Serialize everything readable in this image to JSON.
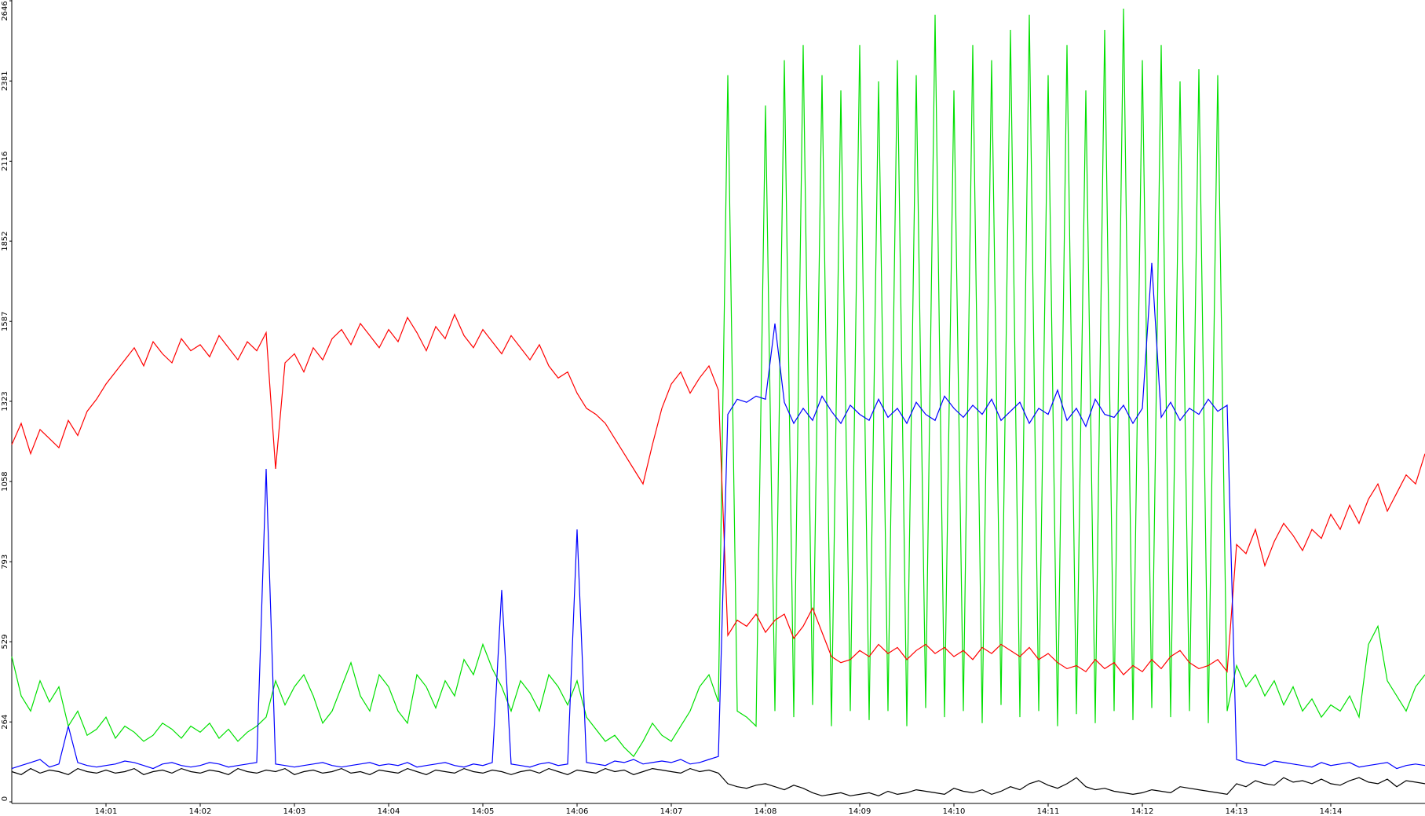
{
  "chart_data": {
    "type": "line",
    "x": [
      0,
      0.1,
      0.2,
      0.3,
      0.4,
      0.5,
      0.6,
      0.7,
      0.8,
      0.9,
      1,
      1.1,
      1.2,
      1.3,
      1.4,
      1.5,
      1.6,
      1.7,
      1.8,
      1.9,
      2,
      2.1,
      2.2,
      2.3,
      2.4,
      2.5,
      2.6,
      2.7,
      2.8,
      2.9,
      3,
      3.1,
      3.2,
      3.3,
      3.4,
      3.5,
      3.6,
      3.7,
      3.8,
      3.9,
      4,
      4.1,
      4.2,
      4.3,
      4.4,
      4.5,
      4.6,
      4.7,
      4.8,
      4.9,
      5,
      5.1,
      5.2,
      5.3,
      5.4,
      5.5,
      5.6,
      5.7,
      5.8,
      5.9,
      6,
      6.1,
      6.2,
      6.3,
      6.4,
      6.5,
      6.6,
      6.7,
      6.8,
      6.9,
      7,
      7.1,
      7.2,
      7.3,
      7.4,
      7.5,
      7.6,
      7.7,
      7.8,
      7.9,
      8,
      8.1,
      8.2,
      8.3,
      8.4,
      8.5,
      8.6,
      8.7,
      8.8,
      8.9,
      9,
      9.1,
      9.2,
      9.3,
      9.4,
      9.5,
      9.6,
      9.7,
      9.8,
      9.9,
      10,
      10.1,
      10.2,
      10.3,
      10.4,
      10.5,
      10.6,
      10.7,
      10.8,
      10.9,
      11,
      11.1,
      11.2,
      11.3,
      11.4,
      11.5,
      11.6,
      11.7,
      11.8,
      11.9,
      12,
      12.1,
      12.2,
      12.3,
      12.4,
      12.5,
      12.6,
      12.7,
      12.8,
      12.9,
      13,
      13.1,
      13.2,
      13.3,
      13.4,
      13.5,
      13.6,
      13.7,
      13.8,
      13.9,
      14,
      14.1,
      14.2,
      14.3,
      14.4,
      14.5,
      14.6,
      14.7,
      14.8,
      14.9,
      15
    ],
    "series": [
      {
        "color": "#00e000",
        "values": [
          480,
          350,
          300,
          400,
          330,
          380,
          250,
          300,
          220,
          240,
          280,
          210,
          250,
          230,
          200,
          220,
          260,
          240,
          210,
          250,
          230,
          260,
          210,
          240,
          200,
          230,
          250,
          280,
          400,
          320,
          380,
          420,
          350,
          260,
          300,
          380,
          460,
          350,
          300,
          420,
          380,
          300,
          260,
          420,
          380,
          310,
          400,
          350,
          470,
          420,
          520,
          440,
          380,
          300,
          400,
          360,
          300,
          420,
          380,
          320,
          400,
          280,
          240,
          200,
          220,
          180,
          150,
          200,
          260,
          220,
          200,
          250,
          300,
          380,
          420,
          330,
          2400,
          300,
          280,
          250,
          2300,
          300,
          2450,
          280,
          2500,
          320,
          2400,
          250,
          2350,
          300,
          2500,
          270,
          2380,
          300,
          2450,
          250,
          2400,
          310,
          2600,
          280,
          2350,
          300,
          2500,
          260,
          2450,
          320,
          2550,
          280,
          2600,
          300,
          2400,
          250,
          2500,
          290,
          2350,
          260,
          2550,
          300,
          2620,
          270,
          2450,
          310,
          2500,
          280,
          2380,
          300,
          2420,
          260,
          2400,
          300,
          450,
          380,
          420,
          350,
          400,
          320,
          380,
          300,
          340,
          280,
          320,
          300,
          350,
          280,
          520,
          580,
          400,
          350,
          300,
          380,
          420
        ]
      },
      {
        "color": "#ff0000",
        "values": [
          1180,
          1250,
          1150,
          1230,
          1200,
          1170,
          1260,
          1210,
          1290,
          1330,
          1380,
          1420,
          1460,
          1500,
          1440,
          1520,
          1480,
          1450,
          1530,
          1490,
          1510,
          1470,
          1540,
          1500,
          1460,
          1520,
          1490,
          1550,
          1100,
          1450,
          1480,
          1420,
          1500,
          1460,
          1530,
          1560,
          1510,
          1580,
          1540,
          1500,
          1560,
          1520,
          1600,
          1550,
          1490,
          1570,
          1530,
          1610,
          1540,
          1500,
          1560,
          1520,
          1480,
          1540,
          1500,
          1460,
          1510,
          1440,
          1400,
          1420,
          1350,
          1300,
          1280,
          1250,
          1200,
          1150,
          1100,
          1050,
          1180,
          1300,
          1380,
          1420,
          1350,
          1400,
          1440,
          1360,
          550,
          600,
          580,
          620,
          560,
          600,
          620,
          540,
          580,
          640,
          560,
          480,
          460,
          470,
          500,
          480,
          520,
          490,
          510,
          470,
          500,
          520,
          490,
          510,
          480,
          500,
          470,
          510,
          490,
          520,
          500,
          480,
          510,
          470,
          490,
          460,
          440,
          450,
          430,
          470,
          440,
          460,
          420,
          450,
          430,
          470,
          440,
          480,
          500,
          460,
          440,
          450,
          470,
          430,
          850,
          820,
          900,
          780,
          860,
          920,
          880,
          830,
          900,
          870,
          950,
          900,
          980,
          920,
          1000,
          1050,
          960,
          1020,
          1080,
          1050,
          1150
        ]
      },
      {
        "color": "#0000ff",
        "values": [
          110,
          120,
          130,
          140,
          115,
          125,
          250,
          130,
          120,
          115,
          120,
          125,
          135,
          130,
          120,
          110,
          125,
          130,
          120,
          115,
          120,
          130,
          125,
          115,
          120,
          125,
          130,
          1100,
          125,
          120,
          115,
          120,
          125,
          130,
          120,
          115,
          120,
          125,
          130,
          120,
          125,
          120,
          130,
          115,
          120,
          125,
          130,
          120,
          115,
          125,
          120,
          130,
          700,
          125,
          120,
          115,
          125,
          130,
          120,
          125,
          900,
          130,
          125,
          120,
          135,
          130,
          140,
          125,
          130,
          135,
          130,
          140,
          125,
          130,
          140,
          150,
          1280,
          1330,
          1320,
          1340,
          1330,
          1580,
          1320,
          1250,
          1300,
          1260,
          1340,
          1290,
          1250,
          1310,
          1280,
          1260,
          1330,
          1270,
          1300,
          1250,
          1320,
          1280,
          1260,
          1340,
          1300,
          1270,
          1310,
          1280,
          1330,
          1260,
          1290,
          1320,
          1250,
          1300,
          1280,
          1360,
          1260,
          1300,
          1240,
          1330,
          1280,
          1270,
          1310,
          1250,
          1300,
          1780,
          1270,
          1320,
          1260,
          1300,
          1280,
          1330,
          1290,
          1310,
          140,
          130,
          125,
          120,
          135,
          130,
          125,
          120,
          115,
          130,
          120,
          125,
          130,
          115,
          120,
          125,
          130,
          110,
          120,
          125,
          120
        ]
      },
      {
        "color": "#000000",
        "values": [
          100,
          90,
          110,
          95,
          105,
          100,
          90,
          110,
          100,
          95,
          105,
          95,
          100,
          110,
          90,
          100,
          105,
          95,
          110,
          100,
          95,
          105,
          100,
          90,
          110,
          100,
          95,
          105,
          100,
          110,
          90,
          100,
          105,
          95,
          100,
          110,
          95,
          100,
          90,
          105,
          100,
          95,
          110,
          100,
          90,
          105,
          100,
          95,
          110,
          100,
          95,
          105,
          100,
          90,
          100,
          105,
          95,
          110,
          100,
          90,
          105,
          100,
          95,
          110,
          100,
          105,
          90,
          100,
          110,
          105,
          100,
          95,
          110,
          100,
          105,
          95,
          60,
          50,
          45,
          55,
          60,
          50,
          40,
          55,
          45,
          30,
          20,
          25,
          30,
          20,
          25,
          30,
          20,
          35,
          25,
          30,
          40,
          35,
          30,
          25,
          45,
          35,
          30,
          40,
          25,
          35,
          50,
          40,
          60,
          70,
          55,
          45,
          60,
          80,
          50,
          40,
          45,
          35,
          30,
          25,
          30,
          40,
          35,
          30,
          50,
          45,
          40,
          35,
          30,
          25,
          60,
          50,
          70,
          60,
          55,
          80,
          65,
          70,
          60,
          75,
          60,
          55,
          70,
          80,
          65,
          60,
          75,
          50,
          70,
          65,
          60
        ]
      }
    ],
    "xlim": [
      0,
      15
    ],
    "xticks": [
      {
        "value": 1,
        "label": "14:01"
      },
      {
        "value": 2,
        "label": "14:02"
      },
      {
        "value": 3,
        "label": "14:03"
      },
      {
        "value": 4,
        "label": "14:04"
      },
      {
        "value": 5,
        "label": "14:05"
      },
      {
        "value": 6,
        "label": "14:06"
      },
      {
        "value": 7,
        "label": "14:07"
      },
      {
        "value": 8,
        "label": "14:08"
      },
      {
        "value": 9,
        "label": "14:09"
      },
      {
        "value": 10,
        "label": "14:10"
      },
      {
        "value": 11,
        "label": "14:11"
      },
      {
        "value": 12,
        "label": "14:12"
      },
      {
        "value": 13,
        "label": "14:13"
      },
      {
        "value": 14,
        "label": "14:14"
      }
    ],
    "ylim": [
      0,
      2646
    ],
    "yticks": [
      0,
      264,
      529,
      793,
      1058,
      1323,
      1587,
      1852,
      2116,
      2381,
      2646
    ]
  }
}
